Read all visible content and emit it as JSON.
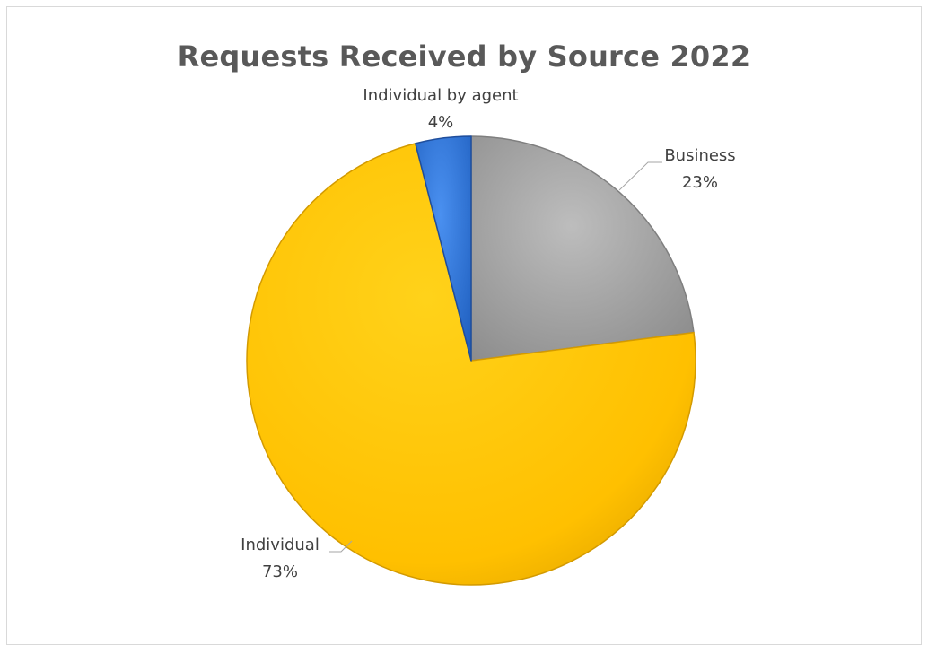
{
  "chart_data": {
    "type": "pie",
    "title": "Requests Received by Source 2022",
    "slices": [
      {
        "label": "Business",
        "percent_label": "23%",
        "value": 23,
        "color": "#a6a6a6",
        "edge": "#7f7f7f"
      },
      {
        "label": "Individual",
        "percent_label": "73%",
        "value": 73,
        "color": "#ffc000",
        "edge": "#d39a00"
      },
      {
        "label": "Individual by agent",
        "percent_label": "4%",
        "value": 4,
        "color": "#2e75d6",
        "edge": "#1f4e9c"
      }
    ],
    "start_angle": "12 o'clock",
    "direction": "clockwise",
    "legend": "none",
    "data_labels": "outside with leader lines"
  }
}
